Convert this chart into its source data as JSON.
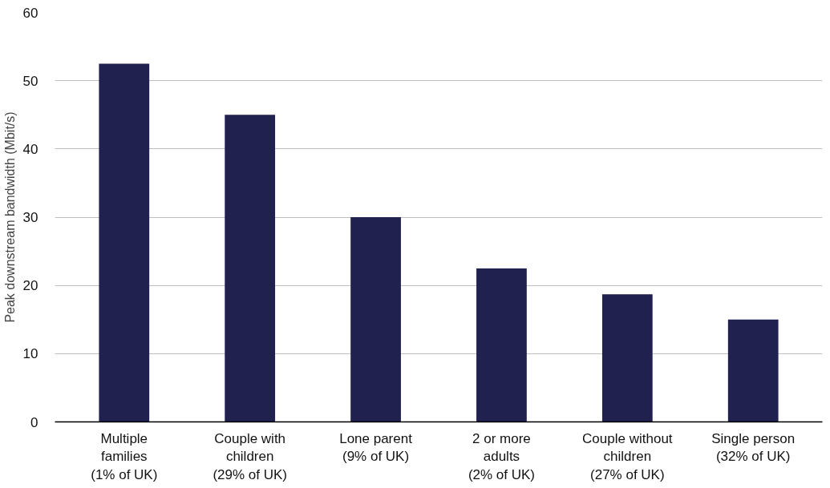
{
  "chart_data": {
    "type": "bar",
    "ylabel": "Peak downstream bandwidth (Mbit/s)",
    "categories": [
      "Multiple\nfamilies\n(1% of UK)",
      "Couple with\nchildren\n(29% of UK)",
      "Lone parent\n(9% of UK)",
      "2 or more\nadults\n(2% of UK)",
      "Couple without\nchildren\n(27% of UK)",
      "Single person\n(32% of UK)"
    ],
    "values": [
      52.5,
      45,
      30,
      22.5,
      18.7,
      15
    ],
    "color": "#20214f",
    "ylim": [
      0,
      60
    ],
    "yticks": [
      0,
      10,
      20,
      30,
      40,
      50,
      60
    ],
    "grid": "y"
  }
}
